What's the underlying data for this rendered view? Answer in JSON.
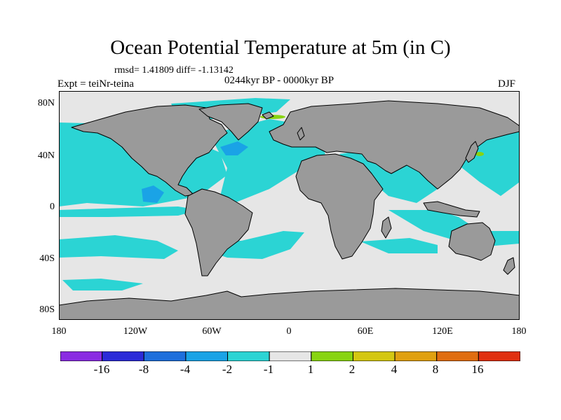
{
  "title": "Ocean Potential Temperature at 5m (in C)",
  "stats": "rmsd= 1.41809 diff= -1.13142",
  "period": "0244kyr BP - 0000kyr BP",
  "experiment": "Expt = teiNr-teina",
  "season": "DJF",
  "lat_labels": [
    "80N",
    "40N",
    "0",
    "40S",
    "80S"
  ],
  "lon_labels": [
    "180",
    "120W",
    "60W",
    "0",
    "60E",
    "120E",
    "180"
  ],
  "colorbar": {
    "colors": [
      "#8a2be2",
      "#2b2bd8",
      "#1e6fdc",
      "#1aa3e6",
      "#2bd4d4",
      "#e6e6e6",
      "#88d411",
      "#d4c711",
      "#e0a010",
      "#e06d10",
      "#e03010"
    ],
    "labels": [
      "-16",
      "-8",
      "-4",
      "-2",
      "-1",
      "1",
      "2",
      "4",
      "8",
      "16"
    ]
  },
  "palette": {
    "land": "#9a9a9a",
    "neutral": "#e6e6e6",
    "cool": "#2bd4d4",
    "cooler": "#1aa3e6",
    "coolest": "#1e6fdc",
    "warm": "#88d411"
  }
}
